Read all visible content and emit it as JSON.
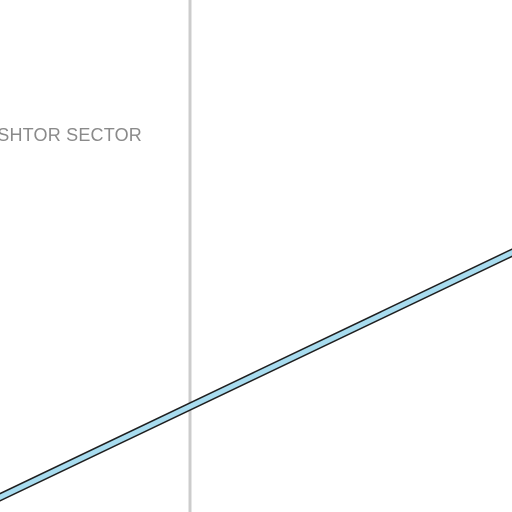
{
  "map": {
    "sector_label": "ASHTOR SECTOR",
    "colors": {
      "background": "#ffffff",
      "boundary_line": "#cccccc",
      "route_fill": "#a8dcef",
      "route_outline": "#1e1e1e",
      "label": "#8a8a8a"
    }
  }
}
